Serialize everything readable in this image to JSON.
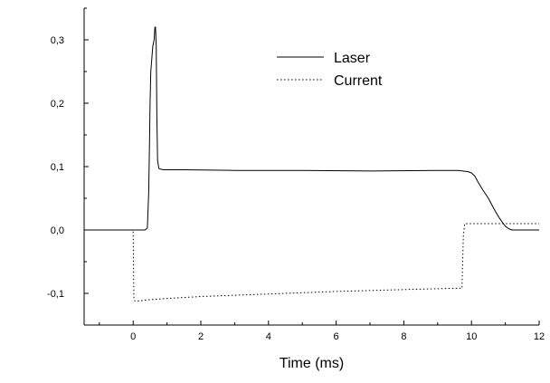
{
  "chart_data": {
    "type": "line",
    "title": "",
    "xlabel": "Time (ms)",
    "ylabel": "",
    "xlim": [
      -1.45,
      12.0
    ],
    "ylim": [
      -0.15,
      0.35
    ],
    "x_ticks": [
      0,
      2,
      4,
      6,
      8,
      10,
      12
    ],
    "x_tick_labels": [
      "0",
      "2",
      "4",
      "6",
      "8",
      "10",
      "12"
    ],
    "y_ticks": [
      -0.1,
      0.0,
      0.1,
      0.2,
      0.3
    ],
    "y_tick_labels": [
      "-0,1",
      "0,0",
      "0,1",
      "0,2",
      "0,3"
    ],
    "grid": false,
    "legend": "top-center",
    "series": [
      {
        "name": "Laser",
        "style": "solid",
        "color": "#000000",
        "x": [
          -1.45,
          0.0,
          0.35,
          0.42,
          0.46,
          0.48,
          0.5,
          0.52,
          0.55,
          0.58,
          0.62,
          0.64,
          0.66,
          0.68,
          0.7,
          0.72,
          0.76,
          0.8,
          0.9,
          1.5,
          3.0,
          5.0,
          7.0,
          9.0,
          9.6,
          9.9,
          10.0,
          10.1,
          10.2,
          10.35,
          10.5,
          10.6,
          10.7,
          10.8,
          10.9,
          11.0,
          11.1,
          11.2,
          11.3,
          12.0
        ],
        "y": [
          0.0,
          0.0,
          0.0,
          0.003,
          0.06,
          0.13,
          0.2,
          0.25,
          0.27,
          0.29,
          0.3,
          0.32,
          0.32,
          0.29,
          0.18,
          0.11,
          0.097,
          0.096,
          0.095,
          0.095,
          0.094,
          0.094,
          0.093,
          0.094,
          0.094,
          0.092,
          0.09,
          0.085,
          0.075,
          0.062,
          0.05,
          0.04,
          0.03,
          0.021,
          0.013,
          0.006,
          0.002,
          0.0,
          0.0,
          0.0
        ]
      },
      {
        "name": "Current",
        "style": "dotted",
        "color": "#000000",
        "x": [
          -1.45,
          -0.05,
          0.0,
          0.02,
          0.05,
          0.1,
          0.2,
          0.3,
          0.5,
          1.0,
          2.0,
          4.0,
          6.0,
          8.0,
          9.5,
          9.72,
          9.73,
          9.76,
          9.8,
          9.9,
          10.5,
          12.0
        ],
        "y": [
          0.0,
          0.0,
          0.0,
          -0.11,
          -0.112,
          -0.112,
          -0.112,
          -0.111,
          -0.11,
          -0.108,
          -0.105,
          -0.101,
          -0.097,
          -0.094,
          -0.092,
          -0.092,
          -0.07,
          -0.01,
          0.01,
          0.01,
          0.01,
          0.01
        ]
      }
    ]
  }
}
